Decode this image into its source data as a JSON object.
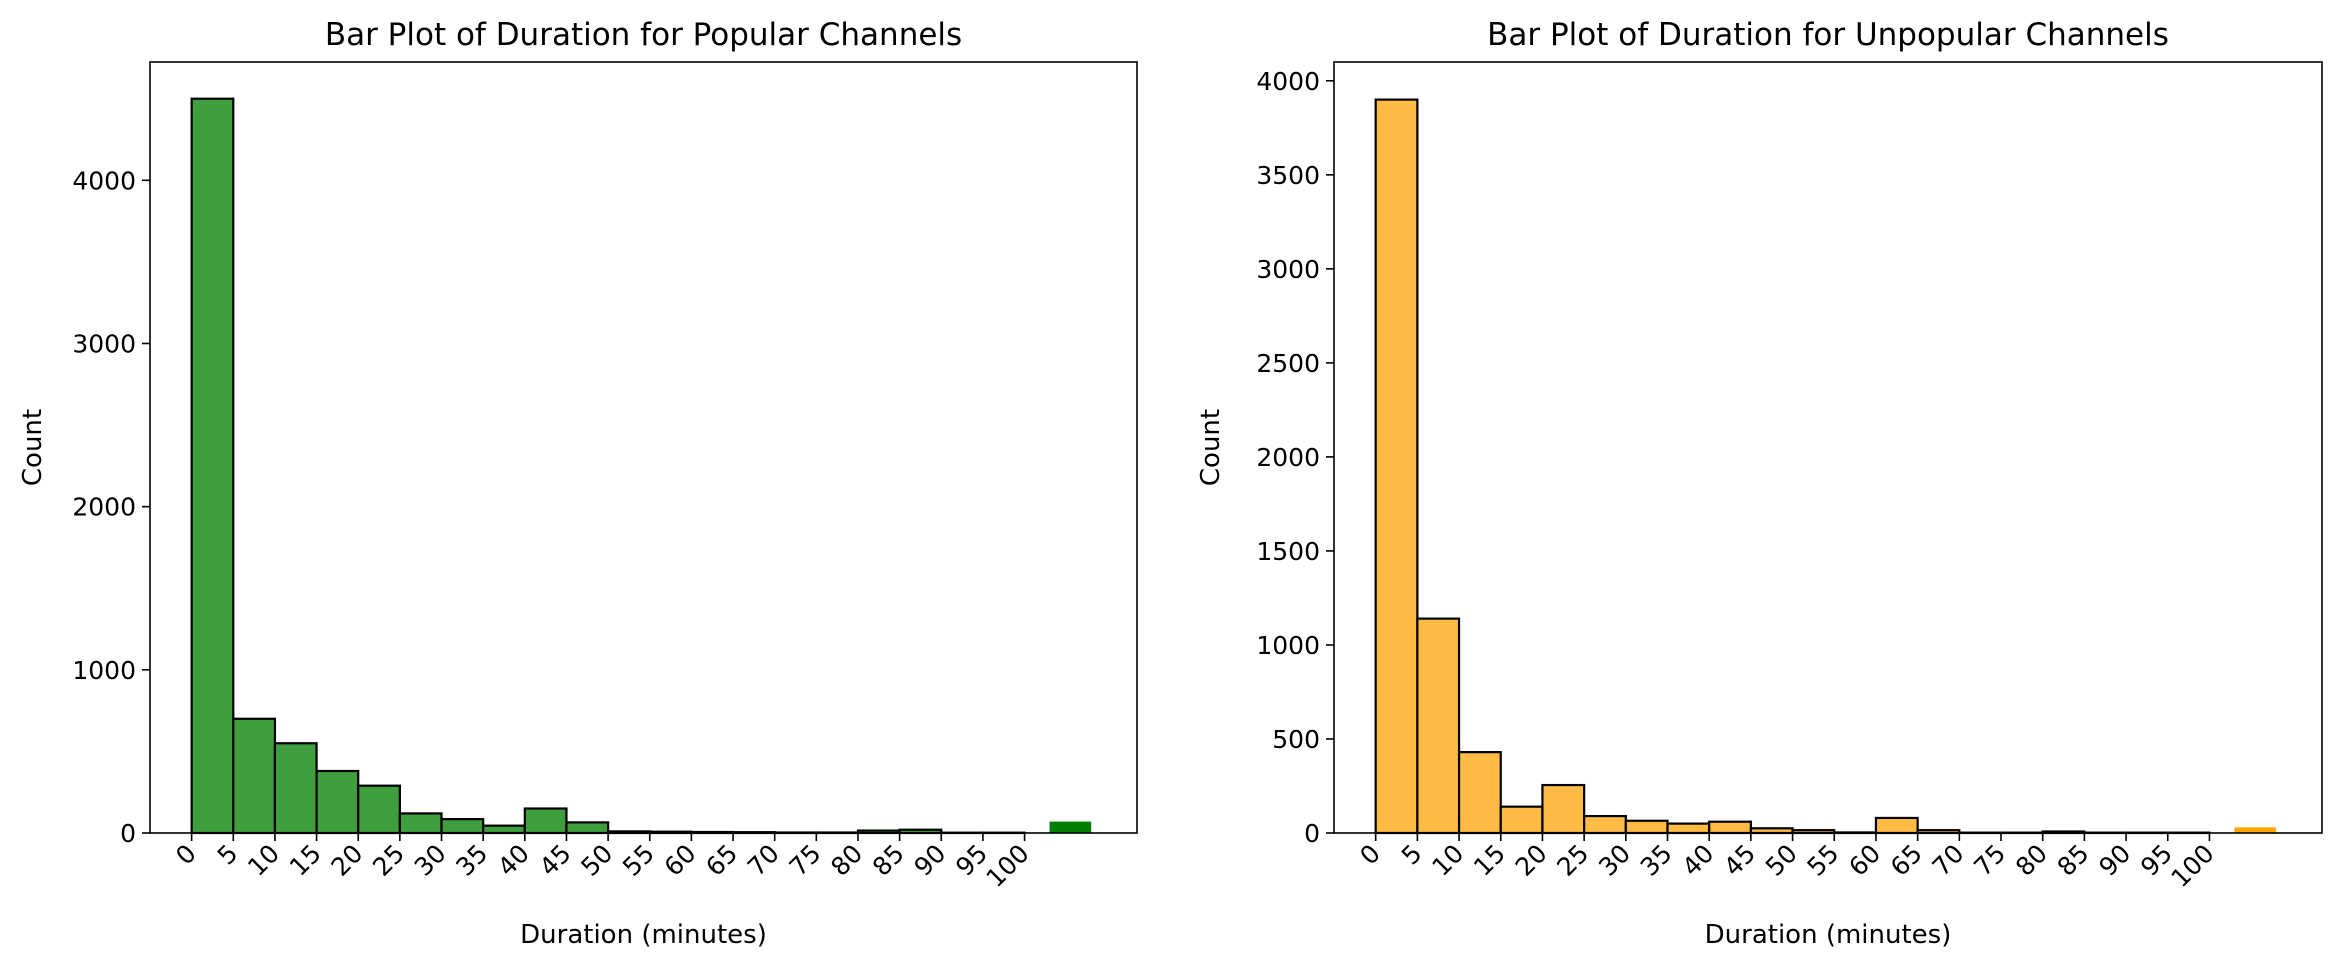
{
  "chart_data": [
    {
      "type": "bar",
      "title": "Bar Plot of Duration for Popular Channels",
      "xlabel": "Duration (minutes)",
      "ylabel": "Count",
      "xlim": [
        -5,
        113.5
      ],
      "ylim": [
        0,
        4725
      ],
      "x_ticks": [
        0,
        5,
        10,
        15,
        20,
        25,
        30,
        35,
        40,
        45,
        50,
        55,
        60,
        65,
        70,
        75,
        80,
        85,
        90,
        95,
        100
      ],
      "x_tick_labels": [
        "0",
        "5",
        "10",
        "15",
        "20",
        "25",
        "30",
        "35",
        "40",
        "45",
        "50",
        "55",
        "60",
        "65",
        "70",
        "75",
        "80",
        "85",
        "90",
        "95",
        "100"
      ],
      "y_ticks": [
        0,
        1000,
        2000,
        3000,
        4000
      ],
      "y_tick_labels": [
        "0",
        "1000",
        "2000",
        "3000",
        "4000"
      ],
      "bar_color": "#3f9f3f",
      "overflow_color": "#008000",
      "bins": [
        {
          "x0": 0,
          "x1": 5,
          "count": 4500
        },
        {
          "x0": 5,
          "x1": 10,
          "count": 700
        },
        {
          "x0": 10,
          "x1": 15,
          "count": 550
        },
        {
          "x0": 15,
          "x1": 20,
          "count": 380
        },
        {
          "x0": 20,
          "x1": 25,
          "count": 290
        },
        {
          "x0": 25,
          "x1": 30,
          "count": 120
        },
        {
          "x0": 30,
          "x1": 35,
          "count": 85
        },
        {
          "x0": 35,
          "x1": 40,
          "count": 45
        },
        {
          "x0": 40,
          "x1": 45,
          "count": 150
        },
        {
          "x0": 45,
          "x1": 50,
          "count": 65
        },
        {
          "x0": 50,
          "x1": 55,
          "count": 10
        },
        {
          "x0": 55,
          "x1": 60,
          "count": 8
        },
        {
          "x0": 60,
          "x1": 65,
          "count": 6
        },
        {
          "x0": 65,
          "x1": 70,
          "count": 5
        },
        {
          "x0": 70,
          "x1": 75,
          "count": 3
        },
        {
          "x0": 75,
          "x1": 80,
          "count": 3
        },
        {
          "x0": 80,
          "x1": 85,
          "count": 15
        },
        {
          "x0": 85,
          "x1": 90,
          "count": 20
        },
        {
          "x0": 90,
          "x1": 95,
          "count": 2
        },
        {
          "x0": 95,
          "x1": 100,
          "count": 2
        }
      ],
      "overflow_bar": {
        "x0": 103,
        "x1": 108,
        "count": 70
      }
    },
    {
      "type": "bar",
      "title": "Bar Plot of Duration for Unpopular Channels",
      "xlabel": "Duration (minutes)",
      "ylabel": "Count",
      "xlim": [
        -5,
        113.5
      ],
      "ylim": [
        0,
        4100
      ],
      "x_ticks": [
        0,
        5,
        10,
        15,
        20,
        25,
        30,
        35,
        40,
        45,
        50,
        55,
        60,
        65,
        70,
        75,
        80,
        85,
        90,
        95,
        100
      ],
      "x_tick_labels": [
        "0",
        "5",
        "10",
        "15",
        "20",
        "25",
        "30",
        "35",
        "40",
        "45",
        "50",
        "55",
        "60",
        "65",
        "70",
        "75",
        "80",
        "85",
        "90",
        "95",
        "100"
      ],
      "y_ticks": [
        0,
        500,
        1000,
        1500,
        2000,
        2500,
        3000,
        3500,
        4000
      ],
      "y_tick_labels": [
        "0",
        "500",
        "1000",
        "1500",
        "2000",
        "2500",
        "3000",
        "3500",
        "4000"
      ],
      "bar_color": "#ffbb44",
      "overflow_color": "#ffa500",
      "bins": [
        {
          "x0": 0,
          "x1": 5,
          "count": 3900
        },
        {
          "x0": 5,
          "x1": 10,
          "count": 1140
        },
        {
          "x0": 10,
          "x1": 15,
          "count": 430
        },
        {
          "x0": 15,
          "x1": 20,
          "count": 140
        },
        {
          "x0": 20,
          "x1": 25,
          "count": 255
        },
        {
          "x0": 25,
          "x1": 30,
          "count": 90
        },
        {
          "x0": 30,
          "x1": 35,
          "count": 65
        },
        {
          "x0": 35,
          "x1": 40,
          "count": 50
        },
        {
          "x0": 40,
          "x1": 45,
          "count": 60
        },
        {
          "x0": 45,
          "x1": 50,
          "count": 25
        },
        {
          "x0": 50,
          "x1": 55,
          "count": 15
        },
        {
          "x0": 55,
          "x1": 60,
          "count": 3
        },
        {
          "x0": 60,
          "x1": 65,
          "count": 80
        },
        {
          "x0": 65,
          "x1": 70,
          "count": 15
        },
        {
          "x0": 70,
          "x1": 75,
          "count": 2
        },
        {
          "x0": 75,
          "x1": 80,
          "count": 2
        },
        {
          "x0": 80,
          "x1": 85,
          "count": 8
        },
        {
          "x0": 85,
          "x1": 90,
          "count": 2
        },
        {
          "x0": 90,
          "x1": 95,
          "count": 2
        },
        {
          "x0": 95,
          "x1": 100,
          "count": 2
        }
      ],
      "overflow_bar": {
        "x0": 103,
        "x1": 108,
        "count": 30
      }
    }
  ]
}
